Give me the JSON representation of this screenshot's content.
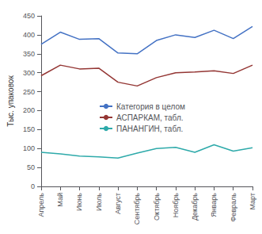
{
  "chart_data": {
    "type": "line",
    "ylabel": "Тыс. упаковок",
    "categories": [
      "Апрель",
      "Май",
      "Июнь",
      "Июль",
      "Август",
      "Сентябрь",
      "Октябрь",
      "Ноябрь",
      "Декабрь",
      "Январь",
      "Февраль",
      "Март"
    ],
    "series": [
      {
        "name": "Категория в целом",
        "color": "#4472c4",
        "values": [
          375,
          407,
          388,
          390,
          352,
          350,
          385,
          400,
          393,
          412,
          390,
          422
        ]
      },
      {
        "name": "АСПАРКАМ, табл.",
        "color": "#943634",
        "values": [
          292,
          320,
          310,
          312,
          275,
          265,
          287,
          300,
          302,
          305,
          298,
          320
        ]
      },
      {
        "name": "ПАНАНГИН, табл.",
        "color": "#2eaaaa",
        "values": [
          90,
          86,
          80,
          78,
          75,
          88,
          100,
          103,
          90,
          110,
          93,
          102
        ]
      }
    ],
    "ylim": [
      0,
      450
    ],
    "yticks": [
      0,
      50,
      100,
      150,
      200,
      250,
      300,
      350,
      400,
      450
    ],
    "grid": false,
    "legend": "center"
  }
}
